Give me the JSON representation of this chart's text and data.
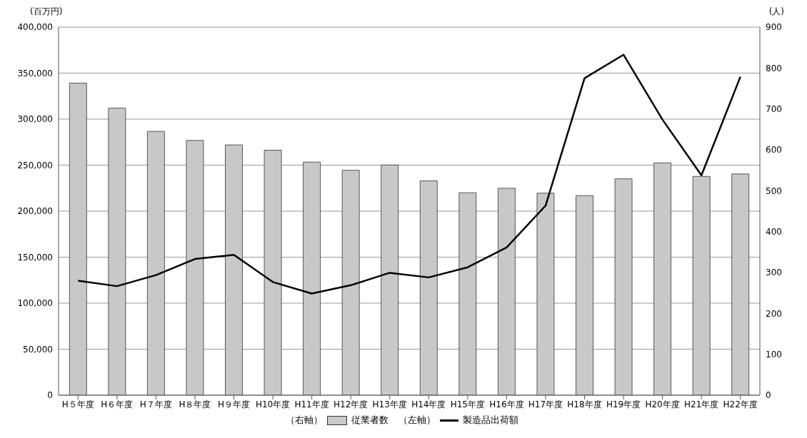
{
  "chart_data": {
    "type": "bar",
    "categories": [
      "H５年度",
      "H６年度",
      "H７年度",
      "H８年度",
      "H９年度",
      "H10年度",
      "H11年度",
      "H12年度",
      "H13年度",
      "H14年度",
      "H15年度",
      "H16年度",
      "H17年度",
      "H18年度",
      "H19年度",
      "H20年度",
      "H21年度",
      "H22年度"
    ],
    "series": [
      {
        "name": "従業者数",
        "axis": "y2",
        "color": "#c8c8c8",
        "values": [
          763,
          702,
          645,
          623,
          612,
          599,
          570,
          550,
          563,
          524,
          495,
          506,
          494,
          488,
          529,
          568,
          535,
          541
        ]
      },
      {
        "name": "製造品出荷額",
        "type": "line",
        "axis": "y",
        "color": "#000000",
        "values": [
          124500,
          118500,
          130500,
          148000,
          152500,
          123000,
          110500,
          119500,
          133000,
          128000,
          139000,
          160500,
          206000,
          344500,
          370000,
          299500,
          239000,
          346000
        ]
      }
    ],
    "ylabel": "(百万円)",
    "y2label": "(人)",
    "ylim": [
      0,
      400000
    ],
    "yticks": [
      {
        "value": 0,
        "label": "0"
      },
      {
        "value": 50000,
        "label": "50,000"
      },
      {
        "value": 100000,
        "label": "100,000"
      },
      {
        "value": 150000,
        "label": "150,000"
      },
      {
        "value": 200000,
        "label": "200,000"
      },
      {
        "value": 250000,
        "label": "250,000"
      },
      {
        "value": 300000,
        "label": "300,000"
      },
      {
        "value": 350000,
        "label": "350,000"
      },
      {
        "value": 400000,
        "label": "400,000"
      }
    ],
    "y2lim": [
      0,
      900
    ],
    "y2ticks": [
      0,
      100,
      200,
      300,
      400,
      500,
      600,
      700,
      800,
      900
    ],
    "annotations": [
      "（右軸）",
      "（左軸）"
    ],
    "grid": "y",
    "legend": "bottom",
    "marker": "none"
  }
}
